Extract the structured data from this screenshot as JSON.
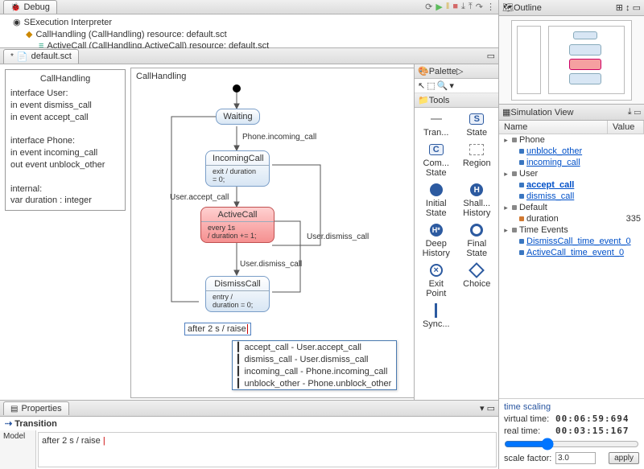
{
  "debug": {
    "title": "Debug",
    "rows": [
      {
        "icon": "interp",
        "label": "SExecution Interpreter",
        "indent": 1
      },
      {
        "icon": "res",
        "label": "CallHandling  (CallHandling) resource: default.sct",
        "indent": 2
      },
      {
        "icon": "res2",
        "label": "ActiveCall  (CallHandling.ActiveCall) resource: default.sct",
        "indent": 3
      }
    ]
  },
  "editor": {
    "tab": "default.sct",
    "diagramTitle": "CallHandling",
    "iface": "interface User:\n  in event dismiss_call\n  in event accept_call\n\ninterface Phone:\n  in event incoming_call\n  out event unblock_other\n\ninternal:\n  var duration : integer",
    "states": {
      "waiting": {
        "label": "Waiting"
      },
      "incoming": {
        "label": "IncomingCall",
        "body": "exit / duration\n= 0;"
      },
      "active": {
        "label": "ActiveCall",
        "body": "every 1s\n/ duration += 1;"
      },
      "dismiss": {
        "label": "DismissCall",
        "body": "entry /\nduration = 0;"
      }
    },
    "labels": {
      "l1": "Phone.incoming_call",
      "l2": "User.accept_call",
      "l3": "User.dismiss_call",
      "l4": "User.dismiss_call"
    },
    "editExpr": "after 2 s / raise",
    "popup": [
      "accept_call - User.accept_call",
      "dismiss_call - User.dismiss_call",
      "incoming_call - Phone.incoming_call",
      "unblock_other - Phone.unblock_other"
    ]
  },
  "palette": {
    "title": "Palette",
    "toolsHdr": "Tools",
    "items": [
      "Tran...",
      "State",
      "Com...\nState",
      "Region",
      "Initial\nState",
      "Shall...\nHistory",
      "Deep\nHistory",
      "Final\nState",
      "Exit\nPoint",
      "Choice",
      "Sync...",
      ""
    ]
  },
  "outline": {
    "title": "Outline"
  },
  "sim": {
    "title": "Simulation View",
    "cols": {
      "name": "Name",
      "value": "Value"
    },
    "rows": [
      {
        "t": "group",
        "label": "Phone"
      },
      {
        "t": "link",
        "label": "unblock_other"
      },
      {
        "t": "link",
        "label": "incoming_call"
      },
      {
        "t": "group",
        "label": "User"
      },
      {
        "t": "link",
        "label": "accept_call",
        "u": true
      },
      {
        "t": "link",
        "label": "dismiss_call"
      },
      {
        "t": "group",
        "label": "Default"
      },
      {
        "t": "var",
        "label": "duration",
        "value": "335"
      },
      {
        "t": "group",
        "label": "Time Events"
      },
      {
        "t": "link",
        "label": "DismissCall_time_event_0"
      },
      {
        "t": "link",
        "label": "ActiveCall_time_event_0"
      }
    ]
  },
  "timeScaling": {
    "title": "time scaling",
    "vtLabel": "virtual time:",
    "vt": "00:06:59:694",
    "rtLabel": "real time:",
    "rt": "00:03:15:167",
    "sfLabel": "scale factor:",
    "sf": "3.0",
    "apply": "apply"
  },
  "props": {
    "tab": "Properties",
    "heading": "Transition",
    "model": "Model",
    "expr": "after 2 s / raise "
  },
  "ifaceTitle": "CallHandling"
}
